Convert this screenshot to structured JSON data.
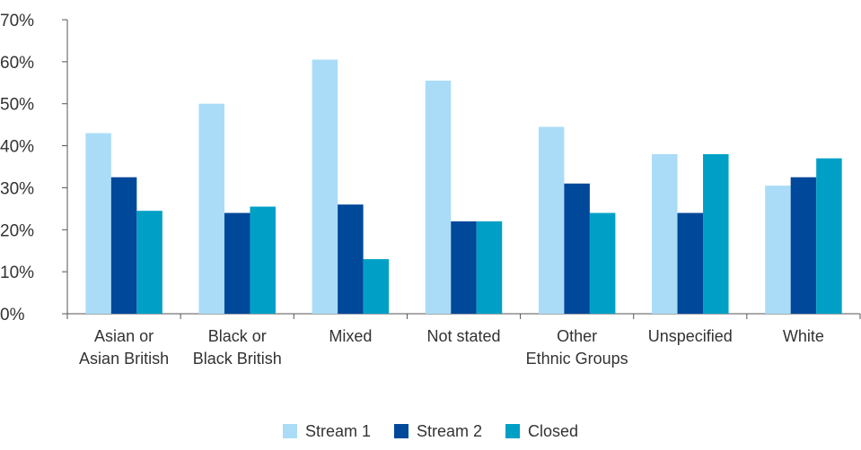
{
  "chart_data": {
    "type": "bar",
    "categories": [
      [
        "Asian or",
        "Asian British"
      ],
      [
        "Black or",
        "Black British"
      ],
      [
        "Mixed"
      ],
      [
        "Not stated"
      ],
      [
        "Other",
        "Ethnic Groups"
      ],
      [
        "Unspecified"
      ],
      [
        "White"
      ]
    ],
    "series": [
      {
        "name": "Stream 1",
        "color": "#aadcf7",
        "values": [
          43,
          50,
          60.5,
          55.5,
          44.5,
          38,
          30.5
        ]
      },
      {
        "name": "Stream 2",
        "color": "#00489a",
        "values": [
          32.5,
          24,
          26,
          22,
          31,
          24,
          32.5
        ]
      },
      {
        "name": "Closed",
        "color": "#00a0c6",
        "values": [
          24.5,
          25.5,
          13,
          22,
          24,
          38,
          37
        ]
      }
    ],
    "y_ticks": [
      "0%",
      "10%",
      "20%",
      "30%",
      "40%",
      "50%",
      "60%",
      "70%"
    ],
    "ylim": [
      0,
      70
    ],
    "y_unit": "%",
    "grid": false,
    "legend_position": "bottom-center",
    "axis_color": "#555555"
  }
}
